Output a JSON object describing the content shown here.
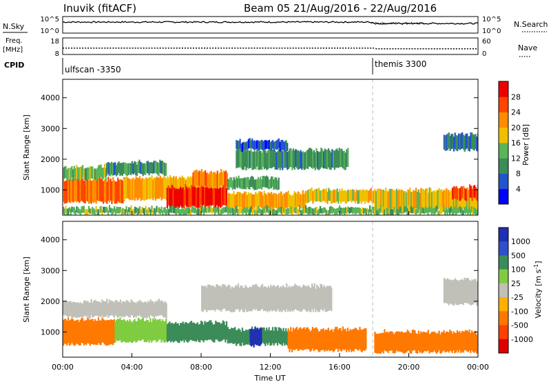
{
  "header": {
    "station": "Inuvik  (fitACF)",
    "beam_date": "Beam 05  21/Aug/2016 - 22/Aug/2016"
  },
  "param_panels": {
    "nsky": {
      "label": "N.Sky",
      "right_label": "N.Search",
      "tick_left_top": "10^5",
      "tick_left_bottom": "10^0",
      "tick_right_top": "10^5",
      "tick_right_bottom": "10^0"
    },
    "freq": {
      "label_line1": "Freq.",
      "label_line2": "[MHz]",
      "right_label": "Nave",
      "tick_left_top": "18",
      "tick_left_bottom": "8",
      "tick_right_top": "60",
      "tick_right_bottom": "0"
    },
    "cpid": {
      "label": "CPID",
      "mode1": "ulfscan -3350",
      "mode2": "themis 3300"
    }
  },
  "colors": {
    "power_scale": [
      "#0000ff",
      "#2255cc",
      "#3c8c5a",
      "#5ab45a",
      "#f0c000",
      "#ff8c00",
      "#ff4400",
      "#ee0000"
    ],
    "velocity_scale": [
      "#2030b0",
      "#3050c8",
      "#3c8c5a",
      "#80cc40",
      "#c0c0b8",
      "#ffb000",
      "#ff7800",
      "#ff4000",
      "#dd0000"
    ]
  },
  "chart_data": [
    {
      "type": "heatmap",
      "title": "Power",
      "ylabel": "Slant Range [km]",
      "ylim": [
        180,
        4600
      ],
      "xlim_hours": [
        0,
        24
      ],
      "yticks": [
        "1000",
        "2000",
        "3000",
        "4000"
      ],
      "colorbar": {
        "label": "Power [dB]",
        "ticks": [
          "4",
          "8",
          "12",
          "16",
          "20",
          "24",
          "28"
        ],
        "range": [
          0,
          32
        ]
      },
      "bands": [
        {
          "x": [
            0,
            3.5
          ],
          "range": [
            600,
            1350
          ],
          "value": 24
        },
        {
          "x": [
            0,
            2.5
          ],
          "range": [
            1350,
            1750
          ],
          "value": 14
        },
        {
          "x": [
            2.5,
            6
          ],
          "range": [
            1500,
            1900
          ],
          "value": 10
        },
        {
          "x": [
            3.5,
            8
          ],
          "range": [
            700,
            1400
          ],
          "value": 20
        },
        {
          "x": [
            6,
            9.5
          ],
          "range": [
            450,
            1100
          ],
          "value": 29
        },
        {
          "x": [
            7.5,
            9.5
          ],
          "range": [
            1100,
            1600
          ],
          "value": 22
        },
        {
          "x": [
            9.5,
            12.5
          ],
          "range": [
            1050,
            1400
          ],
          "value": 12
        },
        {
          "x": [
            9.5,
            14
          ],
          "range": [
            400,
            900
          ],
          "value": 20
        },
        {
          "x": [
            10,
            16.5
          ],
          "range": [
            1700,
            2300
          ],
          "value": 10
        },
        {
          "x": [
            14,
            18
          ],
          "range": [
            600,
            1000
          ],
          "value": 18
        },
        {
          "x": [
            18,
            24
          ],
          "range": [
            350,
            1000
          ],
          "value": 18
        },
        {
          "x": [
            22.5,
            24
          ],
          "range": [
            700,
            1100
          ],
          "value": 26
        },
        {
          "x": [
            10,
            13
          ],
          "range": [
            2300,
            2600
          ],
          "value": 6
        },
        {
          "x": [
            22,
            24
          ],
          "range": [
            2300,
            2800
          ],
          "value": 8
        },
        {
          "x": [
            0,
            24
          ],
          "range": [
            220,
            420
          ],
          "value": 14
        }
      ]
    },
    {
      "type": "heatmap",
      "title": "Velocity",
      "ylabel": "Slant Range [km]",
      "ylim": [
        180,
        4600
      ],
      "xlim_hours": [
        0,
        24
      ],
      "yticks": [
        "1000",
        "2000",
        "3000",
        "4000"
      ],
      "xticks": [
        "00:00",
        "04:00",
        "08:00",
        "12:00",
        "16:00",
        "20:00",
        "00:00"
      ],
      "xlabel": "Time UT",
      "colorbar": {
        "label": "Velocity [m s-1]",
        "ticks": [
          "1000",
          "500",
          "100",
          "25",
          "-25",
          "-100",
          "-500",
          "-1000"
        ]
      },
      "bands": [
        {
          "x": [
            0,
            3
          ],
          "range": [
            600,
            1400
          ],
          "value": -300
        },
        {
          "x": [
            0,
            6
          ],
          "range": [
            1500,
            2000
          ],
          "value": 0
        },
        {
          "x": [
            3,
            6
          ],
          "range": [
            700,
            1400
          ],
          "value": 60
        },
        {
          "x": [
            6,
            9.5
          ],
          "range": [
            700,
            1300
          ],
          "value": 300
        },
        {
          "x": [
            9.5,
            13
          ],
          "range": [
            600,
            1100
          ],
          "value": 400
        },
        {
          "x": [
            10.8,
            11.5
          ],
          "range": [
            550,
            1100
          ],
          "value": 1100
        },
        {
          "x": [
            8,
            15.5
          ],
          "range": [
            1700,
            2500
          ],
          "value": 0
        },
        {
          "x": [
            13,
            17.5
          ],
          "range": [
            400,
            1100
          ],
          "value": -350
        },
        {
          "x": [
            18,
            24
          ],
          "range": [
            350,
            1000
          ],
          "value": -350
        },
        {
          "x": [
            22,
            24
          ],
          "range": [
            1900,
            2700
          ],
          "value": 0
        }
      ]
    }
  ]
}
